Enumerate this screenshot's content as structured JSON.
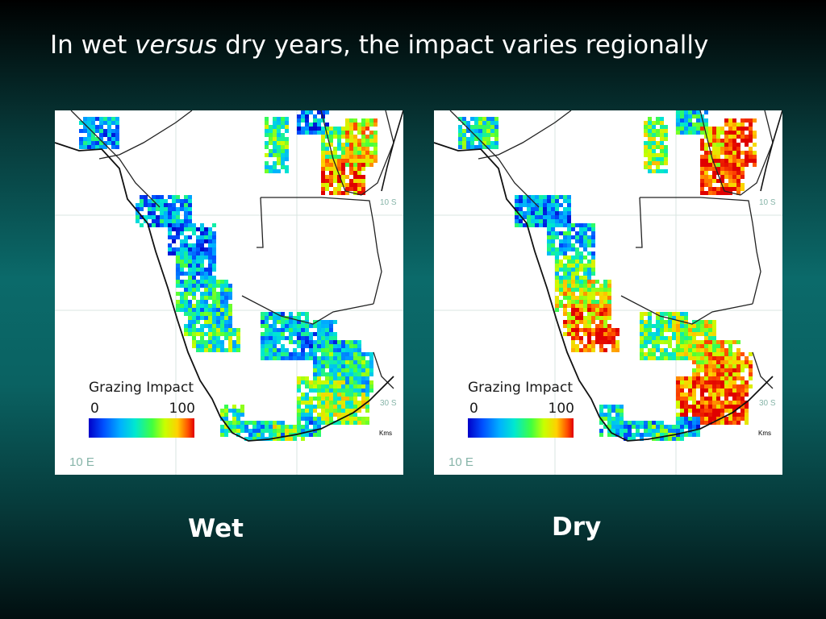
{
  "slide": {
    "title_before": "In wet ",
    "title_emphasis": "versus",
    "title_after": " dry years, the impact varies regionally"
  },
  "colors": {
    "background_top": "#000000",
    "background_mid": "#0b6a6a",
    "legend_scale": [
      "#0000c8",
      "#0050ff",
      "#00b0ff",
      "#00e8d0",
      "#40ff40",
      "#c8ff00",
      "#ffd000",
      "#ff5000",
      "#e00000"
    ]
  },
  "maps": [
    {
      "caption": "Wet",
      "legend_title": "Grazing Impact",
      "legend_min": "0",
      "legend_max": "100",
      "lat_label_top": "10 S",
      "lat_label_bottom": "30 S",
      "lon_label": "10 E",
      "scale_label": "Kms",
      "impact_levels": {
        "north": [
          0.45,
          0.25,
          0.2,
          0.55,
          0.7,
          0.85
        ],
        "west": [
          0.25,
          0.2,
          0.3,
          0.35,
          0.4,
          0.45
        ],
        "east": [
          0.3,
          0.25,
          0.35,
          0.4,
          0.5,
          0.55
        ],
        "south": [
          0.45,
          0.35,
          0.55,
          0.3
        ]
      }
    },
    {
      "caption": "Dry",
      "legend_title": "Grazing Impact",
      "legend_min": "0",
      "legend_max": "100",
      "lat_label_top": "10 S",
      "lat_label_bottom": "30 S",
      "lon_label": "10 E",
      "scale_label": "Kms",
      "impact_levels": {
        "north": [
          0.55,
          0.4,
          0.35,
          0.75,
          0.9,
          0.95
        ],
        "west": [
          0.25,
          0.3,
          0.45,
          0.65,
          0.8,
          0.9
        ],
        "east": [
          0.5,
          0.6,
          0.7,
          0.8,
          0.85,
          0.9
        ],
        "south": [
          0.35,
          0.3,
          0.4,
          0.25
        ]
      }
    }
  ]
}
